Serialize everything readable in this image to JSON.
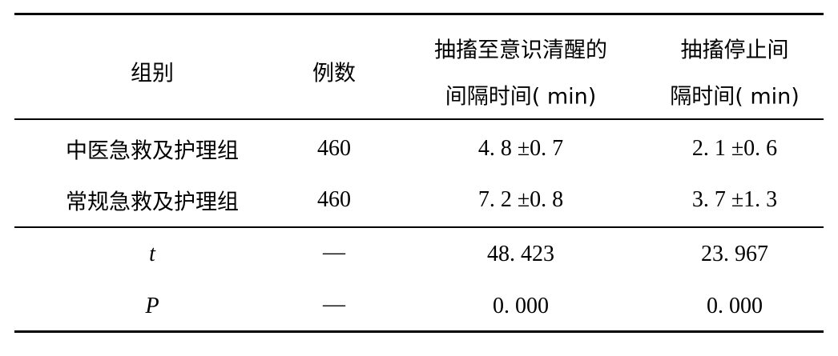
{
  "table": {
    "headers": [
      [
        "组别"
      ],
      [
        "例数"
      ],
      [
        "抽搐至意识清醒的",
        "间隔时间( min)"
      ],
      [
        "抽搐停止间",
        "隔时间( min)"
      ]
    ],
    "rows": [
      [
        "中医急救及护理组",
        "460",
        "4. 8 ±0. 7",
        "2. 1 ±0. 6"
      ],
      [
        "常规急救及护理组",
        "460",
        "7. 2 ±0. 8",
        "3. 7 ±1. 3"
      ],
      [
        "t",
        "—",
        "48. 423",
        "23. 967"
      ],
      [
        "P",
        "—",
        "0. 000",
        "0. 000"
      ]
    ]
  }
}
